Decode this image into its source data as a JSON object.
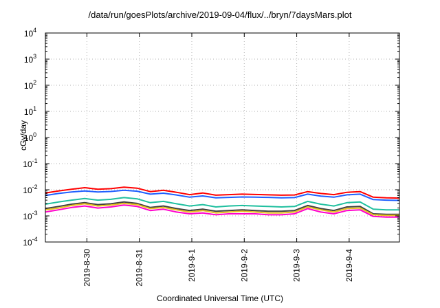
{
  "chart_data": {
    "type": "line",
    "title": "/data/run/goesPlots/archive/2019-09-04/flux/../bryn/7daysMars.plot",
    "xlabel": "Coordinated Universal Time (UTC)",
    "ylabel": "cGy/day",
    "yscale": "log",
    "ylim": [
      0.0001,
      10000
    ],
    "xlim": [
      "2019-08-29T05:00",
      "2019-09-04T23:00"
    ],
    "grid": true,
    "yticks": [
      {
        "value": 0.0001,
        "base": "10",
        "exp": "-4"
      },
      {
        "value": 0.001,
        "base": "10",
        "exp": "-3"
      },
      {
        "value": 0.01,
        "base": "10",
        "exp": "-2"
      },
      {
        "value": 0.1,
        "base": "10",
        "exp": "-1"
      },
      {
        "value": 1,
        "base": "10",
        "exp": "0"
      },
      {
        "value": 10,
        "base": "10",
        "exp": "1"
      },
      {
        "value": 100,
        "base": "10",
        "exp": "2"
      },
      {
        "value": 1000,
        "base": "10",
        "exp": "3"
      },
      {
        "value": 10000,
        "base": "10",
        "exp": "4"
      }
    ],
    "xticks": [
      {
        "date": "2019-08-30T00:00",
        "label": "2019-8-30"
      },
      {
        "date": "2019-08-31T00:00",
        "label": "2019-8-31"
      },
      {
        "date": "2019-09-01T00:00",
        "label": "2019-9-1"
      },
      {
        "date": "2019-09-02T00:00",
        "label": "2019-9-2"
      },
      {
        "date": "2019-09-03T00:00",
        "label": "2019-9-3"
      },
      {
        "date": "2019-09-04T00:00",
        "label": "2019-9-4"
      }
    ],
    "x": [
      "2019-08-29T05:00",
      "2019-08-29T11:00",
      "2019-08-29T17:00",
      "2019-08-29T23:00",
      "2019-08-30T05:00",
      "2019-08-30T11:00",
      "2019-08-30T17:00",
      "2019-08-30T23:00",
      "2019-08-31T05:00",
      "2019-08-31T11:00",
      "2019-08-31T17:00",
      "2019-08-31T23:00",
      "2019-09-01T05:00",
      "2019-09-01T11:00",
      "2019-09-01T17:00",
      "2019-09-01T23:00",
      "2019-09-02T05:00",
      "2019-09-02T11:00",
      "2019-09-02T17:00",
      "2019-09-02T23:00",
      "2019-09-03T05:00",
      "2019-09-03T11:00",
      "2019-09-03T17:00",
      "2019-09-03T23:00",
      "2019-09-04T05:00",
      "2019-09-04T11:00",
      "2019-09-04T17:00",
      "2019-09-04T23:00"
    ],
    "series": [
      {
        "color": "#ff0000",
        "values": [
          0.0075,
          0.009,
          0.0105,
          0.012,
          0.0105,
          0.011,
          0.0125,
          0.0115,
          0.0085,
          0.0095,
          0.008,
          0.0065,
          0.0075,
          0.0062,
          0.0065,
          0.0068,
          0.0066,
          0.0064,
          0.0062,
          0.0063,
          0.0085,
          0.0072,
          0.0065,
          0.008,
          0.0085,
          0.0052,
          0.0049,
          0.0048
        ]
      },
      {
        "color": "#1f5fff",
        "values": [
          0.006,
          0.0072,
          0.0082,
          0.009,
          0.0082,
          0.0086,
          0.0095,
          0.0088,
          0.0068,
          0.0074,
          0.0063,
          0.0052,
          0.0058,
          0.0049,
          0.0051,
          0.0053,
          0.0052,
          0.0051,
          0.0049,
          0.005,
          0.0068,
          0.0057,
          0.0052,
          0.0064,
          0.0068,
          0.0042,
          0.004,
          0.0039
        ]
      },
      {
        "color": "#1fbf9f",
        "values": [
          0.0028,
          0.0034,
          0.004,
          0.0046,
          0.004,
          0.0043,
          0.005,
          0.0045,
          0.0032,
          0.0036,
          0.0029,
          0.0024,
          0.0027,
          0.0022,
          0.0024,
          0.0025,
          0.0024,
          0.0023,
          0.0022,
          0.0023,
          0.0036,
          0.0028,
          0.0024,
          0.0032,
          0.0034,
          0.0018,
          0.0017,
          0.0017
        ]
      },
      {
        "color": "#404040",
        "values": [
          0.0019,
          0.0023,
          0.0028,
          0.0032,
          0.0027,
          0.0029,
          0.0034,
          0.003,
          0.0021,
          0.0024,
          0.0019,
          0.0016,
          0.0018,
          0.0015,
          0.0016,
          0.0017,
          0.0016,
          0.0015,
          0.0015,
          0.0016,
          0.0025,
          0.0019,
          0.0016,
          0.0022,
          0.0023,
          0.0012,
          0.00115,
          0.00115
        ]
      },
      {
        "color": "#e8c020",
        "values": [
          0.0017,
          0.002,
          0.0025,
          0.0029,
          0.0024,
          0.0026,
          0.003,
          0.0027,
          0.0019,
          0.0021,
          0.0017,
          0.0014,
          0.0016,
          0.0013,
          0.0014,
          0.0015,
          0.0014,
          0.0013,
          0.0013,
          0.0014,
          0.0022,
          0.0017,
          0.0014,
          0.0019,
          0.002,
          0.0011,
          0.00105,
          0.00105
        ]
      },
      {
        "color": "#ff00cc",
        "values": [
          0.0014,
          0.0017,
          0.0021,
          0.0024,
          0.002,
          0.0022,
          0.0026,
          0.0023,
          0.0016,
          0.0018,
          0.0014,
          0.0012,
          0.0013,
          0.0011,
          0.0012,
          0.0012,
          0.0012,
          0.0011,
          0.0011,
          0.0012,
          0.0019,
          0.0014,
          0.0012,
          0.0016,
          0.0017,
          0.00095,
          0.0009,
          0.0009
        ]
      }
    ]
  }
}
